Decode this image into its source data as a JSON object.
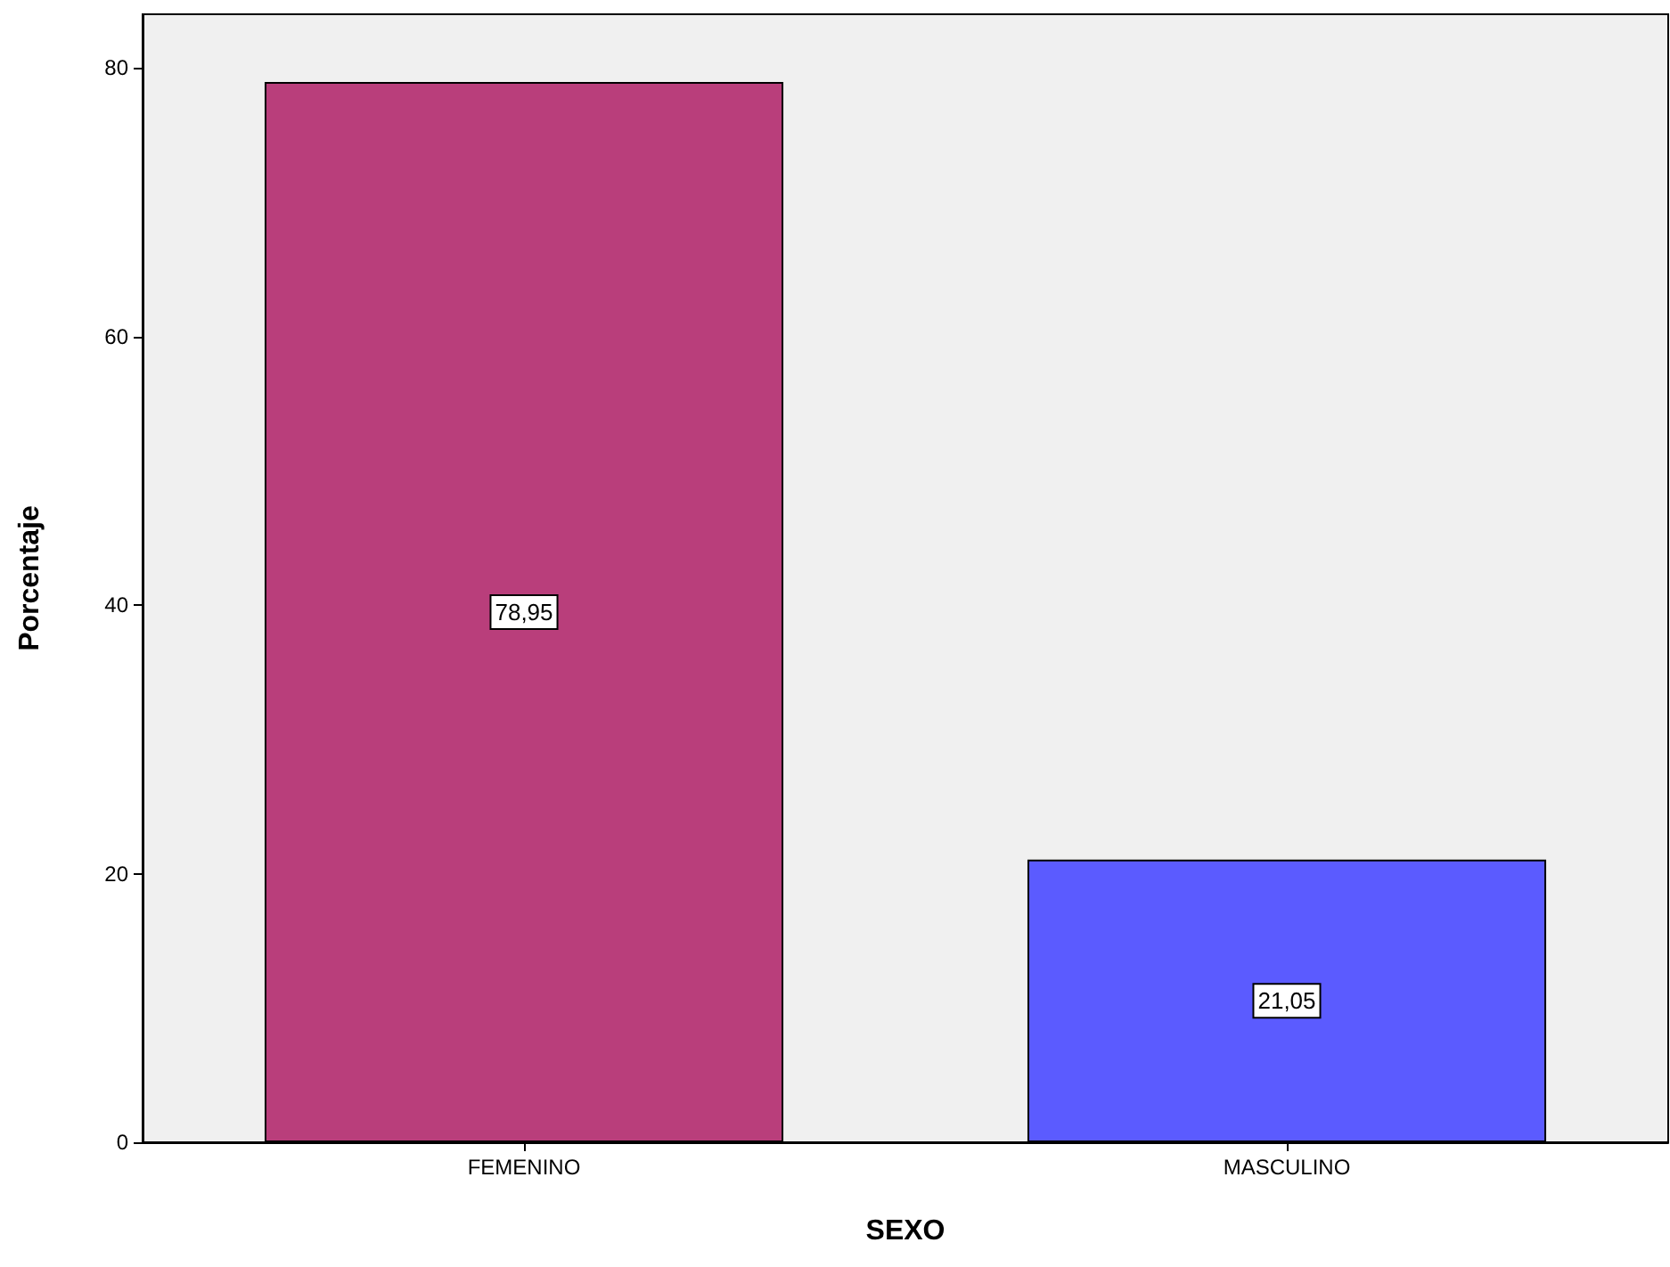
{
  "chart_data": {
    "type": "bar",
    "xlabel": "SEXO",
    "ylabel": "Porcentaje",
    "categories": [
      "FEMENINO",
      "MASCULINO"
    ],
    "values": [
      78.95,
      21.05
    ],
    "colors": [
      "#b93e7b",
      "#5b5bff"
    ],
    "value_labels": [
      "78,95",
      "21,05"
    ],
    "ylim": [
      0,
      84
    ],
    "yticks": [
      0,
      20,
      40,
      60,
      80
    ],
    "grid": false
  }
}
